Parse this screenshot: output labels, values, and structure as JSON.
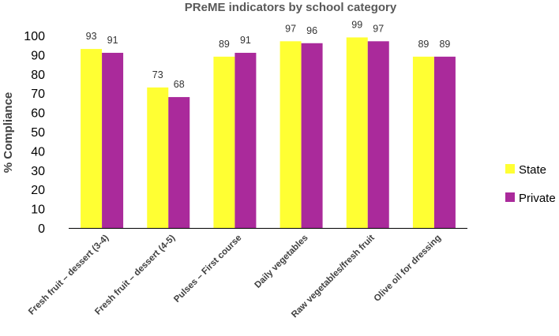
{
  "chart_data": {
    "type": "bar",
    "title": "PReME indicators by school category",
    "xlabel": "",
    "ylabel": "% Compliance",
    "ylim": [
      0,
      100
    ],
    "yticks": [
      0,
      10,
      20,
      30,
      40,
      50,
      60,
      70,
      80,
      90,
      100
    ],
    "categories": [
      "Fresh fruit – dessert (3-4)",
      "Fresh fruit – dessert (4-5)",
      "Pulses – First course",
      "Daily vegetables",
      "Raw vegetables/fresh fruit",
      "Olive oil for dressing"
    ],
    "series": [
      {
        "name": "State",
        "color": "#ffff33",
        "values": [
          93,
          73,
          89,
          97,
          99,
          89
        ]
      },
      {
        "name": "Private",
        "color": "#aa2a9b",
        "values": [
          91,
          68,
          91,
          96,
          97,
          89
        ]
      }
    ],
    "grid": false,
    "legend_position": "right"
  }
}
